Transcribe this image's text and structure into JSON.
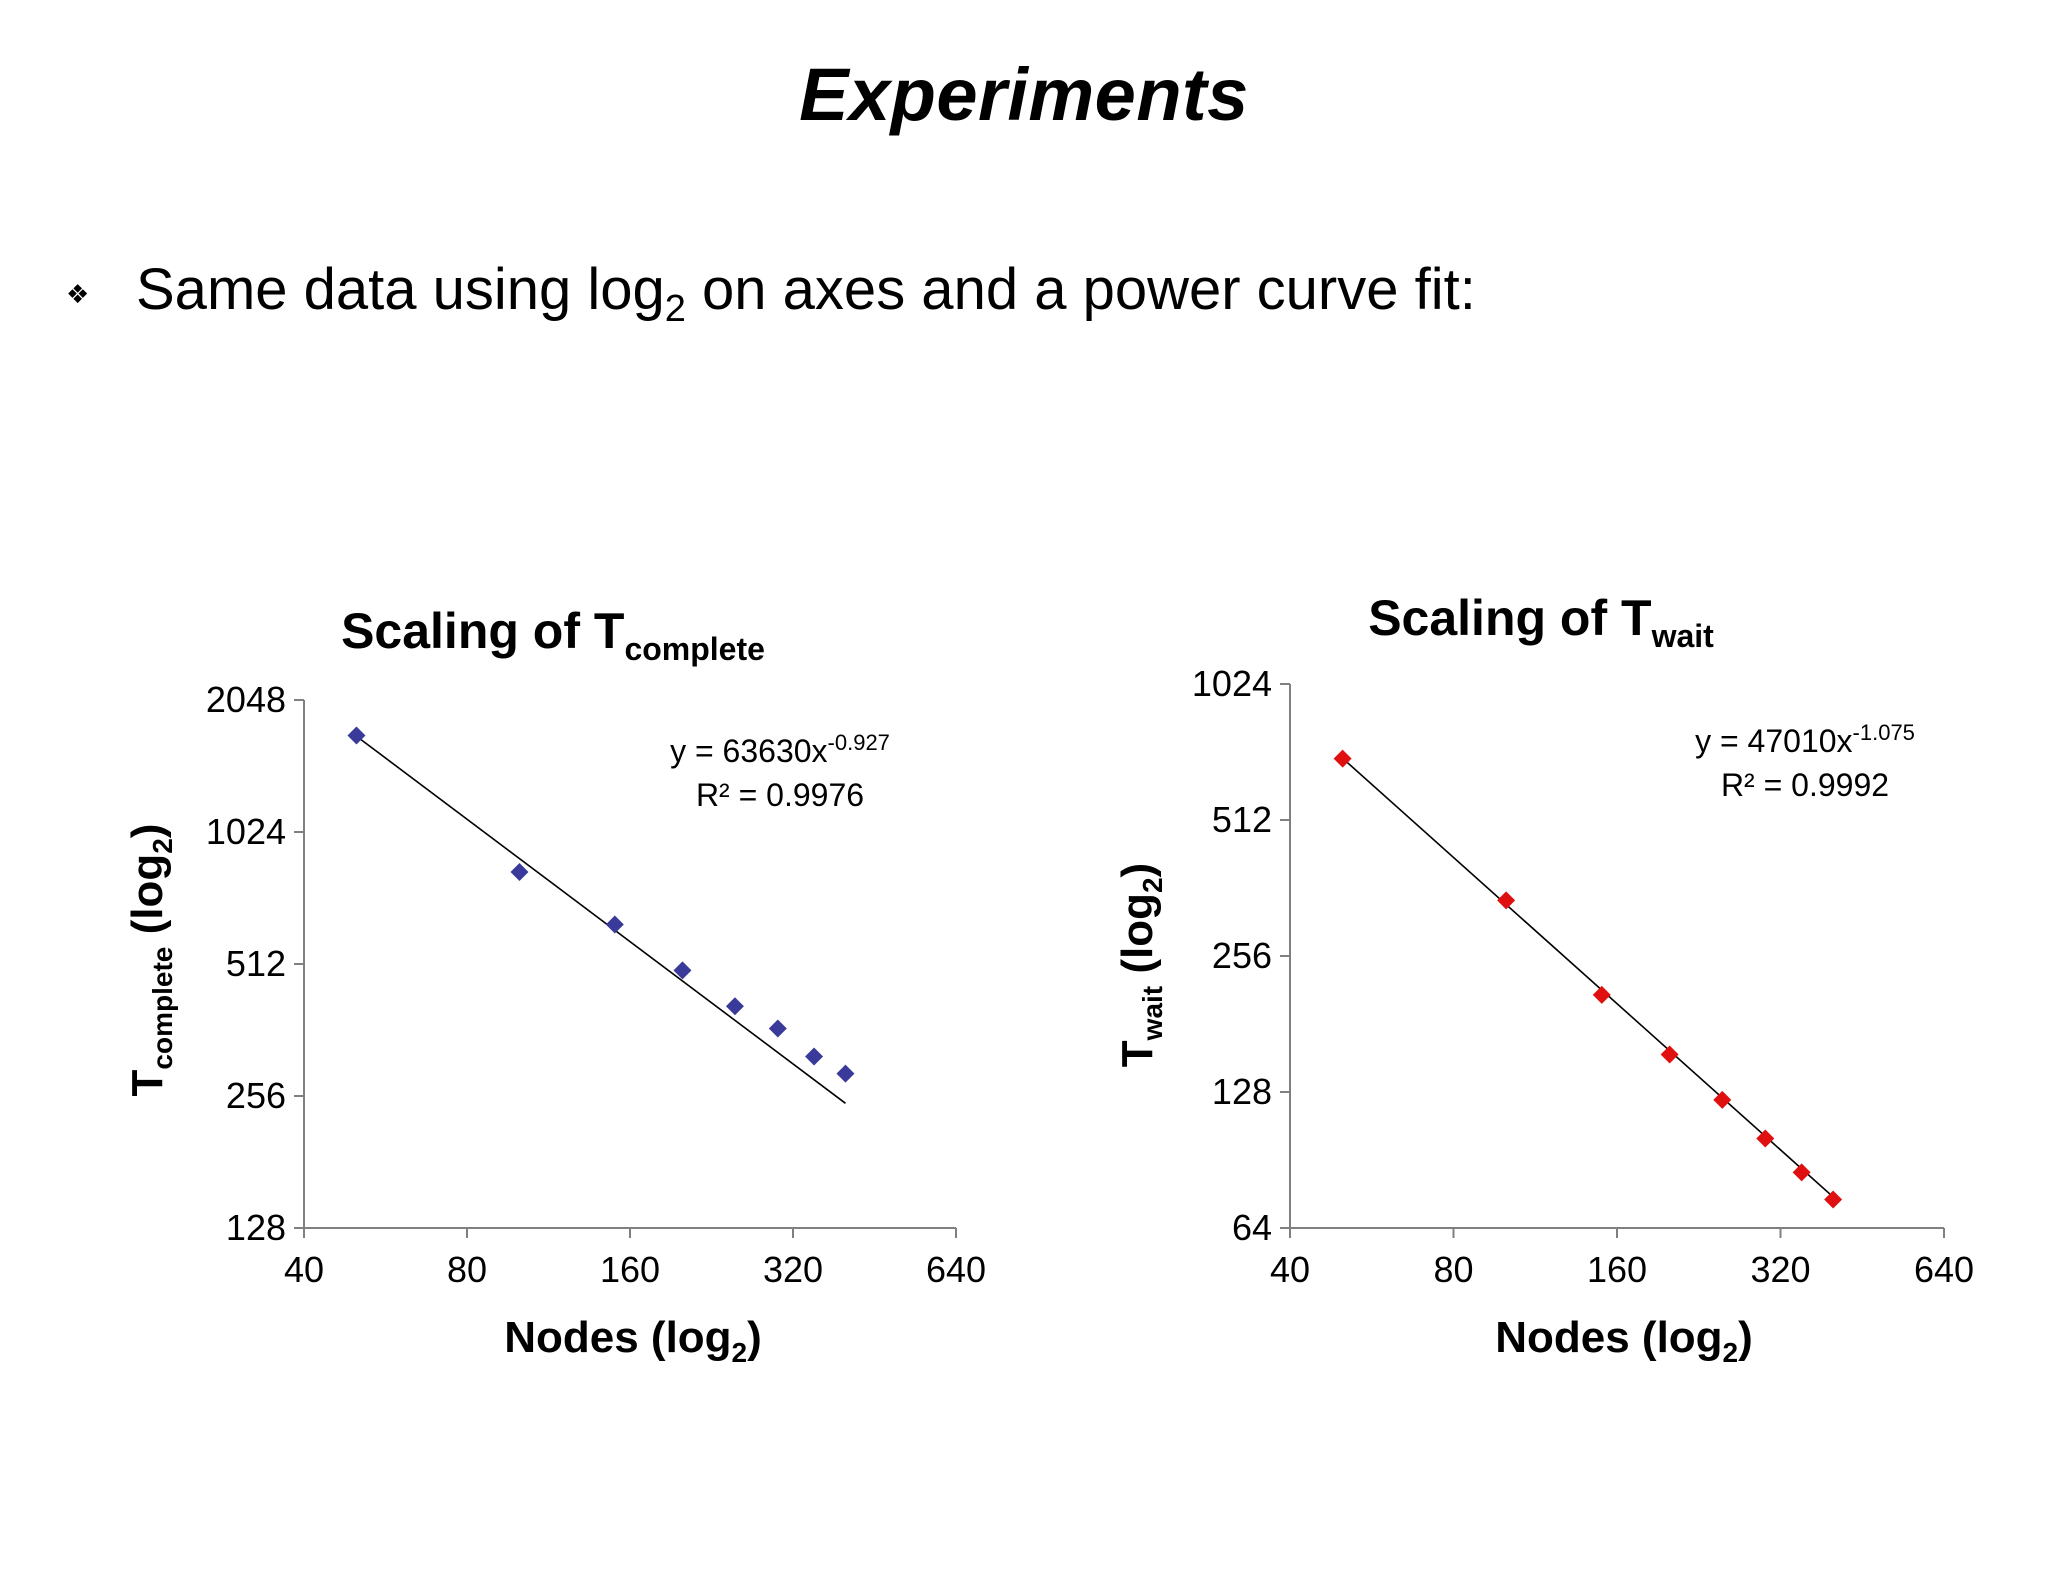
{
  "slide": {
    "title": "Experiments",
    "bullet": {
      "icon": "diamond-bullet-icon",
      "text_before": "Same data using log",
      "text_sub": "2",
      "text_after": " on axes and a power curve fit:"
    }
  },
  "chart_data": [
    {
      "type": "scatter",
      "title_main": "Scaling of T",
      "title_sub": "complete",
      "xlabel_main": "Nodes (log",
      "xlabel_sub": "2",
      "xlabel_end": ")",
      "ylabel_main": "T",
      "ylabel_sub": "complete",
      "ylabel_end": " (log",
      "ylabel_sub2": "2",
      "ylabel_close": ")",
      "x_scale": "log2",
      "y_scale": "log2",
      "xlim": [
        40,
        640
      ],
      "ylim": [
        128,
        2048
      ],
      "x_ticks": [
        40,
        80,
        160,
        320,
        640
      ],
      "y_ticks": [
        128,
        256,
        512,
        1024,
        2048
      ],
      "marker_color": "#3a3a9a",
      "marker": "diamond",
      "series": [
        {
          "x": [
            50,
            100,
            150,
            200,
            250,
            300,
            350,
            400
          ],
          "y": [
            1700,
            830,
            630,
            495,
            410,
            365,
            315,
            288
          ]
        }
      ],
      "trendline": {
        "type": "power",
        "a": 63630,
        "b": -0.927,
        "x_range": [
          50,
          400
        ],
        "equation_main": "y = 63630x",
        "equation_exp": "-0.927",
        "r2_label": "R² = 0.9976"
      }
    },
    {
      "type": "scatter",
      "title_main": "Scaling of T",
      "title_sub": "wait",
      "xlabel_main": "Nodes (log",
      "xlabel_sub": "2",
      "xlabel_end": ")",
      "ylabel_main": "T",
      "ylabel_sub": "wait",
      "ylabel_end": " (log",
      "ylabel_sub2": "2",
      "ylabel_close": ")",
      "x_scale": "log2",
      "y_scale": "log2",
      "xlim": [
        40,
        640
      ],
      "ylim": [
        64,
        1024
      ],
      "x_ticks": [
        40,
        80,
        160,
        320,
        640
      ],
      "y_ticks": [
        64,
        128,
        256,
        512,
        1024
      ],
      "marker_color": "#e01010",
      "marker": "diamond",
      "series": [
        {
          "x": [
            50,
            100,
            150,
            200,
            250,
            300,
            350,
            400
          ],
          "y": [
            700,
            340,
            210,
            155,
            123,
            101,
            85,
            74
          ]
        }
      ],
      "trendline": {
        "type": "power",
        "a": 47010,
        "b": -1.075,
        "x_range": [
          50,
          400
        ],
        "equation_main": "y = 47010x",
        "equation_exp": "-1.075",
        "r2_label": "R² = 0.9992"
      }
    }
  ]
}
